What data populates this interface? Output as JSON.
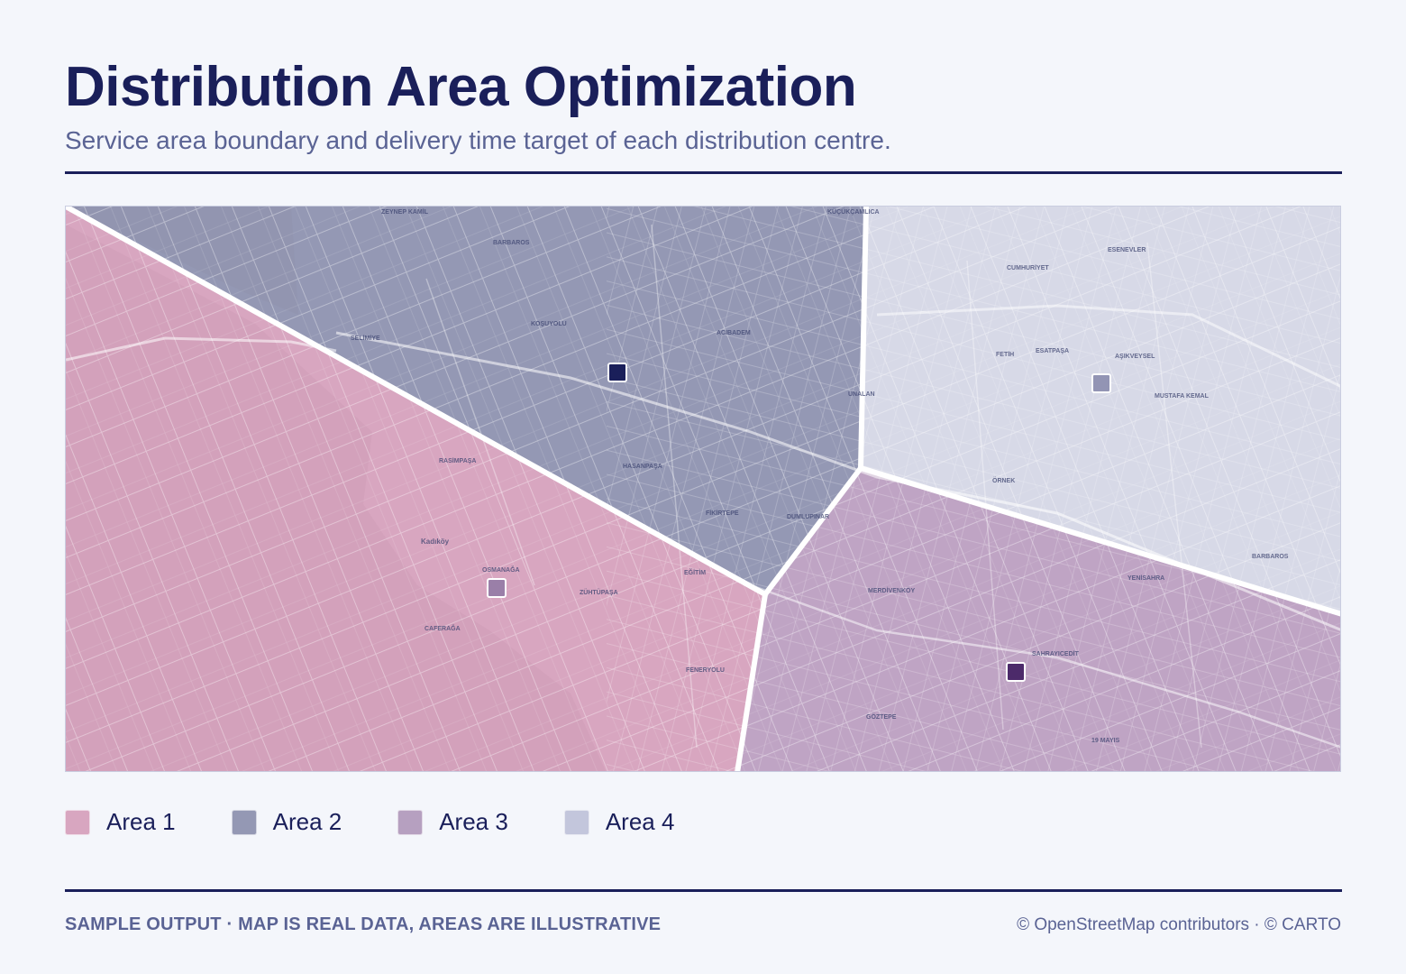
{
  "header": {
    "title": "Distribution Area Optimization",
    "subtitle": "Service area boundary and delivery time target of each distribution centre."
  },
  "map": {
    "areas": [
      {
        "name": "Area 1",
        "color": "#d8a6c0"
      },
      {
        "name": "Area 2",
        "color": "#9498b4"
      },
      {
        "name": "Area 3",
        "color": "#bfa4c4"
      },
      {
        "name": "Area 4",
        "color": "#d7d9e7"
      }
    ],
    "centres": [
      {
        "area": "Area 1",
        "color": "#9a7fa8"
      },
      {
        "area": "Area 2",
        "color": "#1a1f5a"
      },
      {
        "area": "Area 3",
        "color": "#4c2a6a"
      },
      {
        "area": "Area 4",
        "color": "#9294b4"
      }
    ],
    "place_labels": [
      "ZEYNEP KAMİL",
      "KÜÇÜKÇAMLICA",
      "BARBAROS",
      "SELİMİYE",
      "KOŞUYOLU",
      "ACIBADEM",
      "HASANPAŞA",
      "FİKİRTEPE",
      "DUMLUPINAR",
      "UNALAN",
      "RASİMPAŞA",
      "Kadıköy",
      "OSMANAĞA",
      "ZÜHTÜPAŞA",
      "EĞİTİM",
      "CAFERAĞA",
      "FENERYOLU",
      "ESENEVLER",
      "CUMHURİYET",
      "FETİH",
      "ESATPAŞA",
      "AŞIKVEYSEL",
      "MUSTAFA KEMAL",
      "ÖRNEK",
      "BARBAROS",
      "MERDİVENKÖY",
      "YENİSAHRA",
      "SAHRAYICEDİT",
      "GÖZTEPE",
      "19 MAYIS"
    ]
  },
  "legend": [
    {
      "label": "Area 1",
      "color": "#d8a6c0"
    },
    {
      "label": "Area 2",
      "color": "#9498b4"
    },
    {
      "label": "Area 3",
      "color": "#b6a0c0"
    },
    {
      "label": "Area 4",
      "color": "#c3c6dc"
    }
  ],
  "footer": {
    "left": "SAMPLE OUTPUT · MAP IS REAL DATA, AREAS ARE ILLUSTRATIVE",
    "right": "© OpenStreetMap contributors · © CARTO"
  }
}
